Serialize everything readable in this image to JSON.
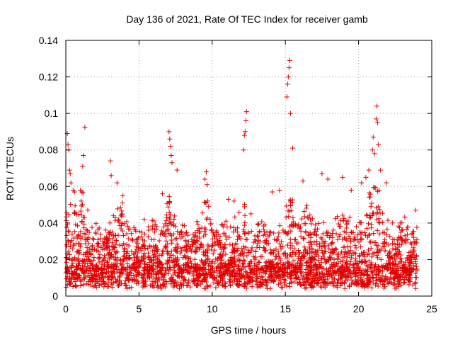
{
  "chart_data": {
    "type": "scatter",
    "title": "Day 136 of 2021, Rate Of TEC Index for receiver gamb",
    "xlabel": "GPS time / hours",
    "ylabel": "ROTI / TECUs",
    "xlim": [
      0,
      25
    ],
    "ylim": [
      0,
      0.14
    ],
    "xticks": [
      0,
      5,
      10,
      15,
      20,
      25
    ],
    "xtick_labels": [
      "0",
      "5",
      "10",
      "15",
      "20",
      "25"
    ],
    "yticks": [
      0,
      0.02,
      0.04,
      0.06,
      0.08,
      0.1,
      0.12,
      0.14
    ],
    "ytick_labels": [
      "0",
      "0.02",
      "0.04",
      "0.06",
      "0.08",
      "0.1",
      "0.12",
      "0.14"
    ],
    "grid": true,
    "marker": "+",
    "marker_color": "#e00000",
    "series": [
      {
        "name": "ROTI",
        "x": [
          0.1,
          0.15,
          0.2,
          0.25,
          0.3,
          0.35,
          0.5,
          0.6,
          1.0,
          1.05,
          1.1,
          1.15,
          1.2,
          1.3,
          3.05,
          3.1,
          3.5,
          3.9,
          6.6,
          7.05,
          7.1,
          7.15,
          7.2,
          7.25,
          7.6,
          9.5,
          9.6,
          9.65,
          9.7,
          11.1,
          11.5,
          12.15,
          12.2,
          12.25,
          12.3,
          12.35,
          14.1,
          14.6,
          15.1,
          15.15,
          15.2,
          15.25,
          15.3,
          15.35,
          15.5,
          16.2,
          17.5,
          17.9,
          18.9,
          19.5,
          20.2,
          20.5,
          20.7,
          20.95,
          21.0,
          21.1,
          21.2,
          21.25,
          21.3,
          21.35,
          21.5,
          21.9,
          23.9
        ],
        "y": [
          0.089,
          0.083,
          0.08,
          0.069,
          0.067,
          0.062,
          0.058,
          0.057,
          0.058,
          0.052,
          0.057,
          0.071,
          0.077,
          0.0925,
          0.074,
          0.066,
          0.062,
          0.055,
          0.056,
          0.09,
          0.086,
          0.082,
          0.077,
          0.073,
          0.069,
          0.064,
          0.068,
          0.061,
          0.052,
          0.053,
          0.052,
          0.08,
          0.088,
          0.09,
          0.096,
          0.101,
          0.057,
          0.058,
          0.109,
          0.116,
          0.12,
          0.125,
          0.129,
          0.1,
          0.081,
          0.063,
          0.067,
          0.064,
          0.065,
          0.058,
          0.062,
          0.065,
          0.069,
          0.08,
          0.087,
          0.078,
          0.097,
          0.104,
          0.095,
          0.083,
          0.069,
          0.062,
          0.047
        ]
      }
    ]
  }
}
